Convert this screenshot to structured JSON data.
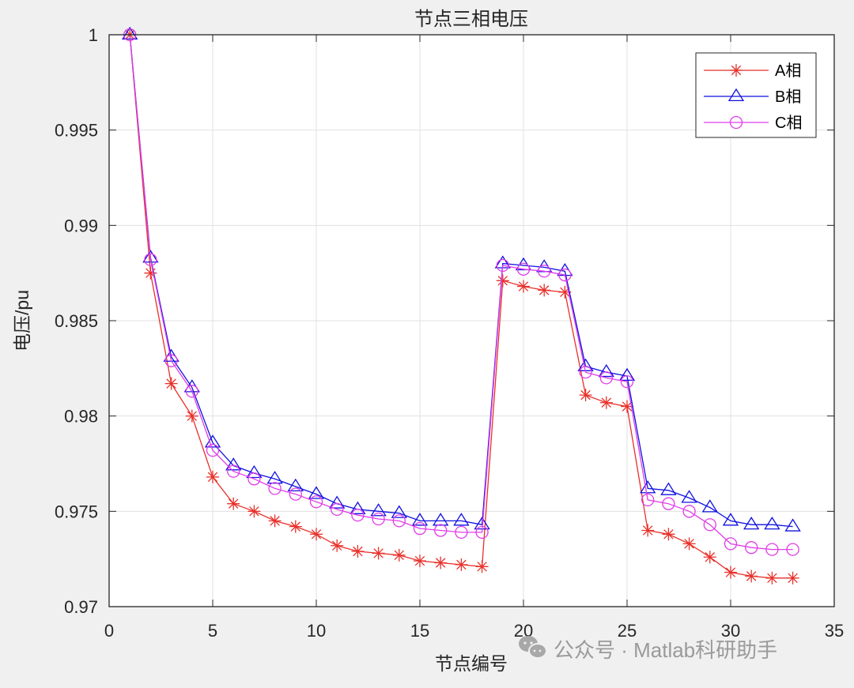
{
  "chart_data": {
    "type": "line",
    "title": "节点三相电压",
    "xlabel": "节点编号",
    "ylabel": "电压/pu",
    "xlim": [
      0,
      35
    ],
    "ylim": [
      0.97,
      1.0
    ],
    "xticks": [
      0,
      5,
      10,
      15,
      20,
      25,
      30,
      35
    ],
    "xtick_labels": [
      "0",
      "5",
      "10",
      "15",
      "20",
      "25",
      "30",
      "35"
    ],
    "yticks": [
      0.97,
      0.975,
      0.98,
      0.985,
      0.99,
      0.995,
      1.0
    ],
    "ytick_labels": [
      "0.97",
      "0.975",
      "0.98",
      "0.985",
      "0.99",
      "0.995",
      "1"
    ],
    "grid": true,
    "legend_position": "northeast",
    "x": [
      1,
      2,
      3,
      4,
      5,
      6,
      7,
      8,
      9,
      10,
      11,
      12,
      13,
      14,
      15,
      16,
      17,
      18,
      19,
      20,
      21,
      22,
      23,
      24,
      25,
      26,
      27,
      28,
      29,
      30,
      31,
      32,
      33
    ],
    "series": [
      {
        "name": "A相",
        "color": "#e8302a",
        "marker": "asterisk",
        "values": [
          1.0,
          0.9875,
          0.9817,
          0.98,
          0.9768,
          0.9754,
          0.975,
          0.9745,
          0.9742,
          0.9738,
          0.9732,
          0.9729,
          0.9728,
          0.9727,
          0.9724,
          0.9723,
          0.9722,
          0.9721,
          0.9871,
          0.9868,
          0.9866,
          0.9865,
          0.9811,
          0.9807,
          0.9805,
          0.974,
          0.9738,
          0.9733,
          0.9726,
          0.9718,
          0.9716,
          0.9715,
          0.9715
        ]
      },
      {
        "name": "B相",
        "color": "#1010e0",
        "marker": "triangle",
        "values": [
          1.0,
          0.9883,
          0.9831,
          0.9815,
          0.9786,
          0.9774,
          0.977,
          0.9767,
          0.9763,
          0.9759,
          0.9754,
          0.9751,
          0.975,
          0.9749,
          0.9745,
          0.9745,
          0.9745,
          0.9743,
          0.988,
          0.9879,
          0.9878,
          0.9876,
          0.9826,
          0.9823,
          0.9821,
          0.9762,
          0.9761,
          0.9757,
          0.9752,
          0.9745,
          0.9743,
          0.9743,
          0.9742
        ]
      },
      {
        "name": "C相",
        "color": "#e03ce8",
        "marker": "circle",
        "values": [
          1.0,
          0.9882,
          0.9829,
          0.9813,
          0.9782,
          0.9771,
          0.9767,
          0.9762,
          0.9759,
          0.9755,
          0.9751,
          0.9748,
          0.9746,
          0.9745,
          0.9741,
          0.974,
          0.9739,
          0.9739,
          0.9879,
          0.9877,
          0.9876,
          0.9874,
          0.9823,
          0.982,
          0.9818,
          0.9756,
          0.9754,
          0.975,
          0.9743,
          0.9733,
          0.9731,
          0.973,
          0.973
        ]
      }
    ]
  },
  "watermark": {
    "icon": "wechat-icon",
    "text": "公众号 · Matlab科研助手"
  },
  "colors": {
    "figure_bg": "#f0f0f0",
    "axes_bg": "#ffffff",
    "grid": "#e1e1e1",
    "axis": "#262626"
  }
}
